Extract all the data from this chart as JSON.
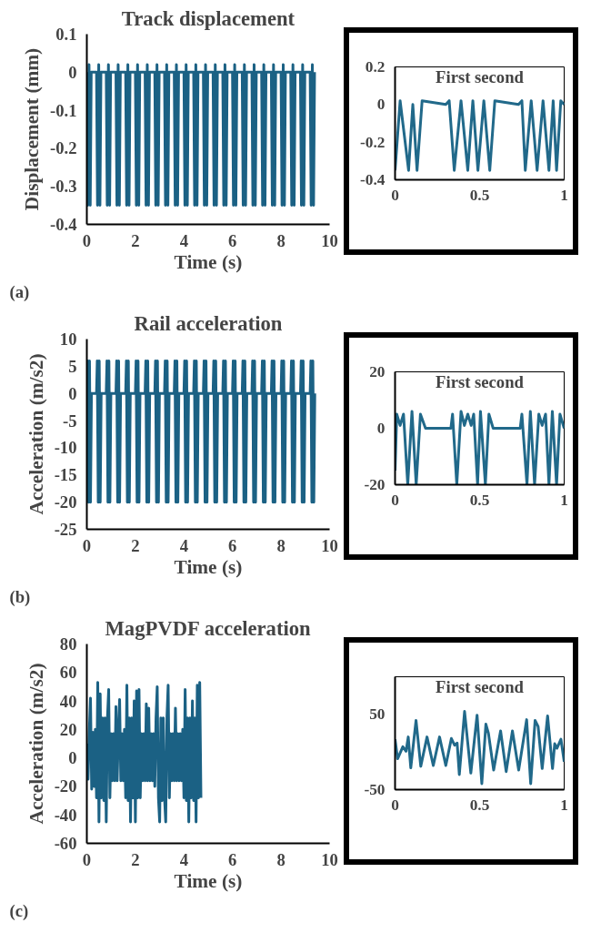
{
  "chart_data": [
    {
      "type": "line",
      "title": "Track displacement",
      "xlabel": "Time (s)",
      "ylabel": "Displacement (mm)",
      "annotations": [
        "(a)"
      ],
      "xlim": [
        0,
        10
      ],
      "ylim": [
        -0.4,
        0.1
      ],
      "xticks": [
        0,
        2,
        4,
        6,
        8,
        10
      ],
      "yticks": [
        -0.4,
        -0.3,
        -0.2,
        -0.1,
        0,
        0.1
      ],
      "line_style": "solid",
      "marker": "none",
      "series": [
        {
          "color": "#1b6184",
          "x": [
            0,
            0.04,
            0.09,
            0.14,
            0.18,
            0.4,
            0.44,
            0.49,
            0.54,
            0.58,
            0.8,
            0.84,
            0.89,
            0.94,
            0.98,
            1.2,
            1.24,
            1.29,
            1.34,
            1.38,
            1.6,
            1.64,
            1.69,
            1.74,
            1.78,
            2,
            2.04,
            2.09,
            2.14,
            2.18,
            2.4,
            2.44,
            2.49,
            2.54,
            2.58,
            2.8,
            2.84,
            2.89,
            2.94,
            2.98,
            3.2,
            3.24,
            3.29,
            3.34,
            3.38,
            3.6,
            3.64,
            3.69,
            3.74,
            3.78,
            4,
            4.04,
            4.09,
            4.14,
            4.18,
            4.4,
            4.44,
            4.49,
            4.54,
            4.58,
            4.8,
            4.84,
            4.89,
            4.94,
            4.98,
            5.2,
            5.24,
            5.29,
            5.34,
            5.38,
            5.6,
            5.64,
            5.69,
            5.74,
            5.78,
            6,
            6.04,
            6.09,
            6.14,
            6.18,
            6.4,
            6.44,
            6.49,
            6.54,
            6.58,
            6.8,
            6.84,
            6.89,
            6.94,
            6.98,
            7.2,
            7.24,
            7.29,
            7.34,
            7.38,
            7.6,
            7.64,
            7.69,
            7.74,
            7.78,
            8,
            8.04,
            8.09,
            8.14,
            8.18,
            8.4,
            8.44,
            8.49,
            8.54,
            8.58,
            8.8,
            8.84,
            8.89,
            8.94,
            8.98,
            9.2,
            9.24,
            9.29,
            9.34,
            9.38
          ],
          "values": [
            0,
            -0.35,
            0.02,
            -0.35,
            0,
            0,
            -0.35,
            0.02,
            -0.35,
            0,
            0,
            -0.35,
            0.02,
            -0.35,
            0,
            0,
            -0.35,
            0.02,
            -0.35,
            0,
            0,
            -0.35,
            0.02,
            -0.35,
            0,
            0,
            -0.35,
            0.02,
            -0.35,
            0,
            0,
            -0.35,
            0.02,
            -0.35,
            0,
            0,
            -0.35,
            0.02,
            -0.35,
            0,
            0,
            -0.35,
            0.02,
            -0.35,
            0,
            0,
            -0.35,
            0.02,
            -0.35,
            0,
            0,
            -0.35,
            0.02,
            -0.35,
            0,
            0,
            -0.35,
            0.02,
            -0.35,
            0,
            0,
            -0.35,
            0.02,
            -0.35,
            0,
            0,
            -0.35,
            0.02,
            -0.35,
            0,
            0,
            -0.35,
            0.02,
            -0.35,
            0,
            0,
            -0.35,
            0.02,
            -0.35,
            0,
            0,
            -0.35,
            0.02,
            -0.35,
            0,
            0,
            -0.35,
            0.02,
            -0.35,
            0,
            0,
            -0.35,
            0.02,
            -0.35,
            0,
            0,
            -0.35,
            0.02,
            -0.35,
            0,
            0,
            -0.35,
            0.02,
            -0.35,
            0,
            0,
            -0.35,
            0.02,
            -0.35,
            0,
            0,
            -0.35,
            0.02,
            -0.35,
            0,
            0,
            -0.35,
            0.02,
            -0.35,
            0
          ]
        }
      ]
    },
    {
      "type": "line",
      "title": "First second",
      "xlim": [
        0,
        1
      ],
      "ylim": [
        -0.4,
        0.2
      ],
      "xticks": [
        0,
        0.5,
        1
      ],
      "yticks": [
        -0.4,
        -0.2,
        0,
        0.2
      ],
      "line_style": "solid",
      "marker": "none",
      "series": [
        {
          "color": "#21698a",
          "x": [
            0,
            0.03,
            0.08,
            0.105,
            0.13,
            0.16,
            0.3,
            0.32,
            0.35,
            0.39,
            0.43,
            0.46,
            0.49,
            0.525,
            0.56,
            0.59,
            0.73,
            0.75,
            0.77,
            0.805,
            0.84,
            0.875,
            0.91,
            0.935,
            0.955,
            0.98,
            1
          ],
          "values": [
            -0.35,
            0.02,
            -0.35,
            0,
            -0.35,
            0.02,
            0,
            0.02,
            -0.35,
            0.02,
            -0.35,
            0.02,
            -0.35,
            0.02,
            -0.35,
            0.02,
            0,
            0.02,
            -0.35,
            0.02,
            -0.35,
            0.02,
            -0.35,
            0.02,
            -0.35,
            0.02,
            0
          ]
        }
      ]
    },
    {
      "type": "line",
      "title": "Rail acceleration",
      "xlabel": "Time (s)",
      "ylabel": "Acceleration (m/s2)",
      "annotations": [
        "(b)"
      ],
      "xlim": [
        0,
        10
      ],
      "ylim": [
        -25,
        10
      ],
      "xticks": [
        0,
        2,
        4,
        6,
        8,
        10
      ],
      "yticks": [
        -25,
        -20,
        -15,
        -10,
        -5,
        0,
        5,
        10
      ],
      "line_style": "solid",
      "marker": "none",
      "series": [
        {
          "color": "#1b6184",
          "x": [
            0,
            0.03,
            0.07,
            0.11,
            0.15,
            0.19,
            0.4,
            0.43,
            0.47,
            0.51,
            0.55,
            0.59,
            0.8,
            0.83,
            0.87,
            0.91,
            0.95,
            0.99,
            1.2,
            1.23,
            1.27,
            1.31,
            1.35,
            1.39,
            1.6,
            1.63,
            1.67,
            1.71,
            1.75,
            1.79,
            2,
            2.03,
            2.07,
            2.11,
            2.15,
            2.19,
            2.4,
            2.43,
            2.47,
            2.51,
            2.55,
            2.59,
            2.8,
            2.83,
            2.87,
            2.91,
            2.95,
            2.99,
            3.2,
            3.23,
            3.27,
            3.31,
            3.35,
            3.39,
            3.6,
            3.63,
            3.67,
            3.71,
            3.75,
            3.79,
            4,
            4.03,
            4.07,
            4.11,
            4.15,
            4.19,
            4.4,
            4.43,
            4.47,
            4.51,
            4.55,
            4.59,
            4.8,
            4.83,
            4.87,
            4.91,
            4.95,
            4.99,
            5.2,
            5.23,
            5.27,
            5.31,
            5.35,
            5.39,
            5.6,
            5.63,
            5.67,
            5.71,
            5.75,
            5.79,
            6,
            6.03,
            6.07,
            6.11,
            6.15,
            6.19,
            6.4,
            6.43,
            6.47,
            6.51,
            6.55,
            6.59,
            6.8,
            6.83,
            6.87,
            6.91,
            6.95,
            6.99,
            7.2,
            7.23,
            7.27,
            7.31,
            7.35,
            7.39,
            7.6,
            7.63,
            7.67,
            7.71,
            7.75,
            7.79,
            8,
            8.03,
            8.07,
            8.11,
            8.15,
            8.19,
            8.4,
            8.43,
            8.47,
            8.51,
            8.55,
            8.59,
            8.8,
            8.83,
            8.87,
            8.91,
            8.95,
            8.99,
            9.2,
            9.23,
            9.27,
            9.31,
            9.35,
            9.39
          ],
          "values": [
            0,
            6,
            -20,
            6,
            -20,
            0,
            0,
            6,
            -20,
            6,
            -20,
            0,
            0,
            6,
            -20,
            6,
            -20,
            0,
            0,
            6,
            -20,
            6,
            -20,
            0,
            0,
            6,
            -20,
            6,
            -20,
            0,
            0,
            6,
            -20,
            6,
            -20,
            0,
            0,
            6,
            -20,
            6,
            -20,
            0,
            0,
            6,
            -20,
            6,
            -20,
            0,
            0,
            6,
            -20,
            6,
            -20,
            0,
            0,
            6,
            -20,
            6,
            -20,
            0,
            0,
            6,
            -20,
            6,
            -20,
            0,
            0,
            6,
            -20,
            6,
            -20,
            0,
            0,
            6,
            -20,
            6,
            -20,
            0,
            0,
            6,
            -20,
            6,
            -20,
            0,
            0,
            6,
            -20,
            6,
            -20,
            0,
            0,
            6,
            -20,
            6,
            -20,
            0,
            0,
            6,
            -20,
            6,
            -20,
            0,
            0,
            6,
            -20,
            6,
            -20,
            0,
            0,
            6,
            -20,
            6,
            -20,
            0,
            0,
            6,
            -20,
            6,
            -20,
            0,
            0,
            6,
            -20,
            6,
            -20,
            0,
            0,
            6,
            -20,
            6,
            -20,
            0,
            0,
            6,
            -20,
            6,
            -20,
            0,
            0,
            6,
            -20,
            6,
            -20,
            0
          ]
        }
      ]
    },
    {
      "type": "line",
      "title": "First second",
      "xlim": [
        0,
        1
      ],
      "ylim": [
        -20,
        20
      ],
      "xticks": [
        0,
        0.5,
        1
      ],
      "yticks": [
        -20,
        0,
        20
      ],
      "line_style": "solid",
      "marker": "none",
      "series": [
        {
          "color": "#21698a",
          "x": [
            0,
            0.01,
            0.03,
            0.05,
            0.075,
            0.1,
            0.125,
            0.15,
            0.18,
            0.33,
            0.34,
            0.365,
            0.39,
            0.41,
            0.43,
            0.45,
            0.465,
            0.488,
            0.505,
            0.534,
            0.555,
            0.58,
            0.74,
            0.75,
            0.78,
            0.8,
            0.825,
            0.85,
            0.87,
            0.89,
            0.91,
            0.93,
            0.955,
            0.975,
            1
          ],
          "values": [
            -15,
            5,
            1,
            5,
            -20,
            6,
            -20,
            5,
            0,
            0,
            5,
            -20,
            6,
            1,
            5,
            1,
            5,
            -20,
            6,
            -20,
            5,
            0,
            0,
            5,
            -20,
            6,
            -20,
            5,
            1,
            5,
            -20,
            6,
            -20,
            5,
            0
          ]
        }
      ]
    },
    {
      "type": "line",
      "title": "MagPVDF acceleration",
      "xlabel": "Time (s)",
      "ylabel": "Acceleration (m/s2)",
      "annotations": [
        "(c)"
      ],
      "xlim": [
        0,
        10
      ],
      "ylim": [
        -60,
        80
      ],
      "xticks": [
        0,
        2,
        4,
        6,
        8,
        10
      ],
      "yticks": [
        -60,
        -40,
        -20,
        0,
        20,
        40,
        60,
        80
      ],
      "line_style": "solid",
      "marker": "none",
      "series": [
        {
          "color": "#1b6184",
          "x": [
            0,
            0.05,
            0.1,
            0.15,
            0.2,
            0.25,
            0.3,
            0.35,
            0.4,
            0.45,
            0.5,
            0.55,
            0.6,
            0.65,
            0.7,
            0.75,
            0.8,
            0.85,
            0.9,
            0.95,
            1,
            1.05,
            1.1,
            1.15,
            1.2,
            1.25,
            1.3,
            1.35,
            1.4,
            1.45,
            1.5,
            1.55,
            1.6,
            1.65,
            1.7,
            1.75,
            1.8,
            1.85,
            1.9,
            1.95,
            2,
            2.05,
            2.1,
            2.15,
            2.2,
            2.25,
            2.3,
            2.35,
            2.4,
            2.45,
            2.5,
            2.55,
            2.6,
            2.65,
            2.7,
            2.75,
            2.8,
            2.85,
            2.9,
            2.95,
            3,
            3.05,
            3.1,
            3.15,
            3.2,
            3.25,
            3.3,
            3.35,
            3.4,
            3.45,
            3.5,
            3.55,
            3.6,
            3.65,
            3.7,
            3.75,
            3.8,
            3.85,
            3.9,
            3.95,
            4,
            4.05,
            4.1,
            4.15,
            4.2,
            4.25,
            4.3,
            4.35,
            4.4,
            4.45,
            4.5,
            4.55,
            4.6,
            4.65,
            4.7
          ],
          "values": [
            10,
            -15,
            18,
            42,
            -22,
            18,
            -20,
            20,
            -28,
            53,
            -45,
            45,
            -28,
            28,
            -30,
            28,
            -45,
            28,
            48,
            -28,
            17,
            -16,
            17,
            -16,
            36,
            -16,
            17,
            41,
            -16,
            17,
            -16,
            20,
            -28,
            51,
            -30,
            28,
            -45,
            28,
            -28,
            40,
            -45,
            47,
            -28,
            48,
            -28,
            17,
            -16,
            17,
            -16,
            38,
            -16,
            35,
            -16,
            17,
            -16,
            17,
            -20,
            28,
            50,
            -28,
            -45,
            28,
            -30,
            28,
            -28,
            -45,
            28,
            51,
            -28,
            17,
            -16,
            17,
            -16,
            35,
            -16,
            17,
            -16,
            17,
            -16,
            20,
            -28,
            48,
            -30,
            28,
            -45,
            28,
            -28,
            40,
            -30,
            28,
            -45,
            51,
            -28,
            53,
            -28
          ]
        }
      ]
    },
    {
      "type": "line",
      "title": "First second",
      "xlim": [
        0,
        1
      ],
      "ylim": [
        -50,
        100
      ],
      "xticks": [
        0,
        0.5,
        1
      ],
      "yticks": [
        -50,
        50
      ],
      "line_style": "solid",
      "marker": "none",
      "series": [
        {
          "color": "#21698a",
          "x": [
            0,
            0.015,
            0.046,
            0.065,
            0.078,
            0.093,
            0.124,
            0.152,
            0.189,
            0.226,
            0.263,
            0.3,
            0.333,
            0.352,
            0.367,
            0.38,
            0.411,
            0.448,
            0.485,
            0.513,
            0.537,
            0.552,
            0.583,
            0.624,
            0.657,
            0.694,
            0.731,
            0.778,
            0.802,
            0.828,
            0.846,
            0.87,
            0.902,
            0.931,
            0.944,
            0.957,
            0.981,
            1
          ],
          "values": [
            17,
            -9,
            7,
            1,
            20,
            -21,
            42,
            -19,
            20,
            -18,
            20,
            -18,
            18,
            9,
            12,
            -30,
            54,
            -28,
            49,
            -42,
            37,
            25,
            -24,
            28,
            -26,
            28,
            -24,
            43,
            -42,
            42,
            34,
            -22,
            48,
            -22,
            11,
            5,
            17,
            -13
          ]
        }
      ]
    }
  ]
}
